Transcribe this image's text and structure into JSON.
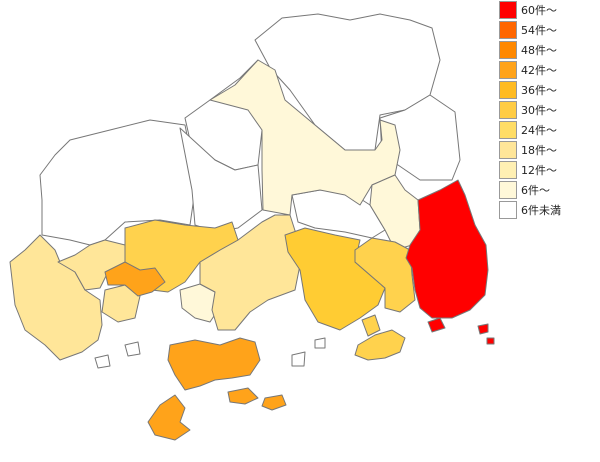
{
  "legend": [
    {
      "label": "60件～",
      "color": "#ff0000"
    },
    {
      "label": "54件～",
      "color": "#ff6600"
    },
    {
      "label": "48件～",
      "color": "#ff8800"
    },
    {
      "label": "42件～",
      "color": "#ffa31a"
    },
    {
      "label": "36件～",
      "color": "#ffbb22"
    },
    {
      "label": "30件～",
      "color": "#ffcc44"
    },
    {
      "label": "24件～",
      "color": "#ffdd66"
    },
    {
      "label": "18件～",
      "color": "#ffe699"
    },
    {
      "label": "12件～",
      "color": "#fff0b3"
    },
    {
      "label": "6件～",
      "color": "#fff8d9"
    },
    {
      "label": "6件未満",
      "color": "#ffffff"
    }
  ]
}
